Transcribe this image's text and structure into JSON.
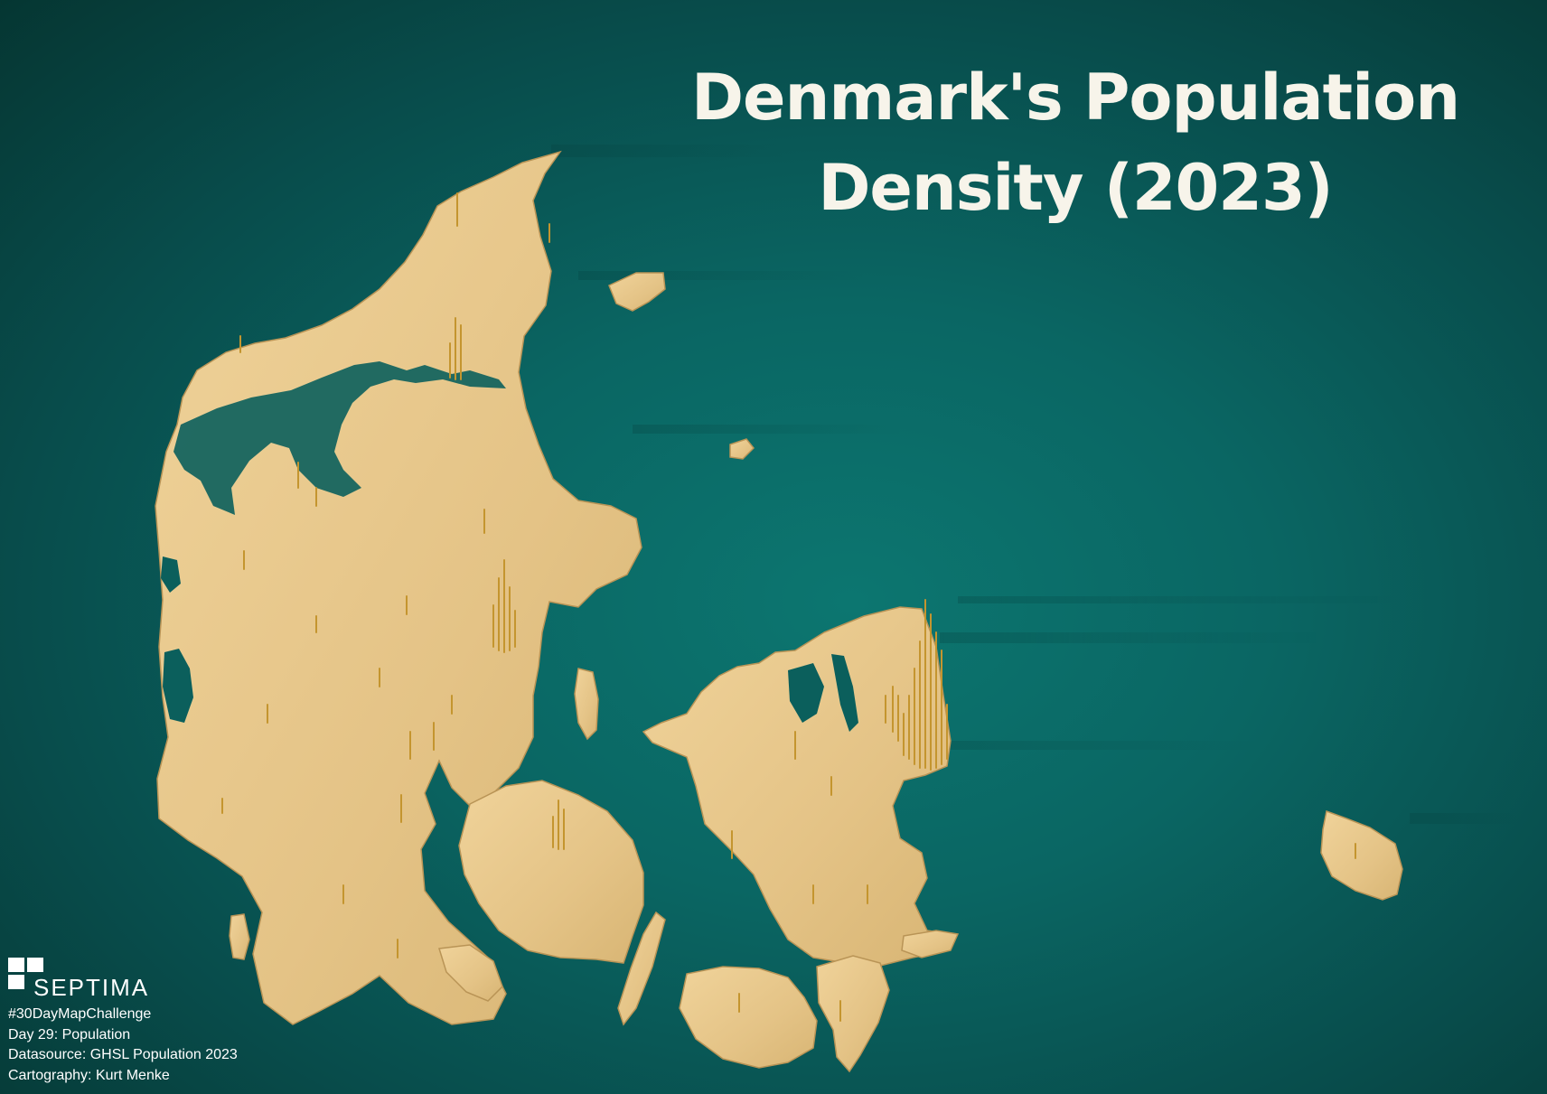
{
  "title": {
    "line1": "Denmark's Population",
    "line2": "Density (2023)"
  },
  "logo": {
    "text": "SEPTIMA",
    "icon": "septima-logo-icon"
  },
  "credits": [
    "#30DayMapChallenge",
    "Day 29: Population",
    "Datasource: GHSL Population 2023",
    "Cartography: Kurt Menke"
  ],
  "colors": {
    "sea": "#0a6663",
    "land": "#e8c98a",
    "spike": "#c99a3a",
    "title": "#f7f4ea"
  }
}
